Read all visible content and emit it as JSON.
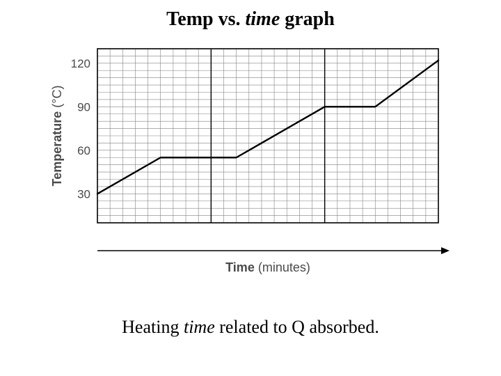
{
  "title": {
    "pre": "Temp vs. ",
    "italic": "time",
    "post": " graph",
    "fontsize_pt": 28,
    "font_weight": "bold"
  },
  "caption": {
    "pre": "Heating ",
    "italic": "time",
    "post": " related to Q absorbed.",
    "fontsize_pt": 26
  },
  "chart": {
    "type": "line",
    "background_color": "#ffffff",
    "grid_color": "#828282",
    "axis_color": "#000000",
    "line_color": "#000000",
    "line_width": 2.4,
    "xlim": [
      0,
      27
    ],
    "ylim": [
      10,
      130
    ],
    "x_grid_step": 1,
    "y_grid_step": 5,
    "x_major_lines": [
      9,
      18
    ],
    "y_ticks": [
      30,
      60,
      90,
      120
    ],
    "ylabel": "Temperature (°C)",
    "ylabel_fontsize": 18,
    "ylabel_bold_word": "Temperature",
    "xlabel": "Time (minutes)",
    "xlabel_fontsize": 18,
    "xlabel_bold_word": "Time",
    "label_color": "#4a4a4a",
    "points": [
      {
        "x": 0,
        "y": 30
      },
      {
        "x": 5,
        "y": 55
      },
      {
        "x": 11,
        "y": 55
      },
      {
        "x": 18,
        "y": 90
      },
      {
        "x": 22,
        "y": 90
      },
      {
        "x": 27,
        "y": 122
      }
    ],
    "inner_border_width": 1.6,
    "x_axis_arrow": true
  }
}
